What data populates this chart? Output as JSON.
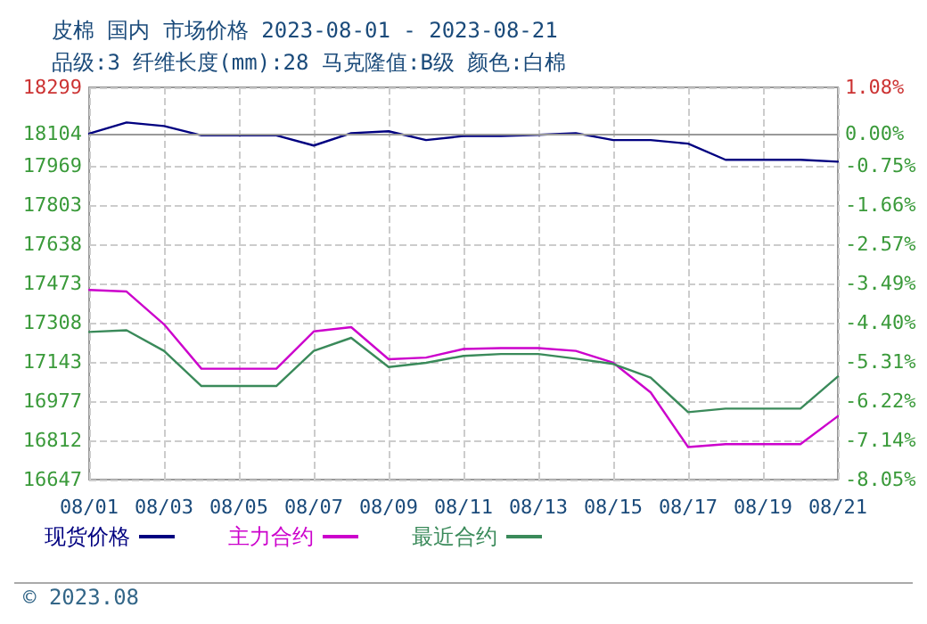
{
  "chart_data": {
    "type": "line",
    "title": "皮棉 国内 市场价格 2023-08-01 - 2023-08-21",
    "subtitle": "品级:3 纤维长度(mm):28 马克隆值:B级 颜色:白棉",
    "annotations": [
      "© 2023.08"
    ],
    "categories": [
      "08/01",
      null,
      "08/03",
      null,
      "08/05",
      null,
      "08/07",
      null,
      "08/09",
      null,
      "08/11",
      null,
      "08/13",
      null,
      "08/15",
      null,
      "08/17",
      null,
      "08/19",
      null,
      "08/21"
    ],
    "series": [
      {
        "name": "现货价格",
        "color": "#000080",
        "values": [
          18104,
          18151,
          18136,
          18097,
          18097,
          18097,
          18054,
          18106,
          18114,
          18077,
          18094,
          18094,
          18099,
          18106,
          18077,
          18077,
          18062,
          17994,
          17994,
          17994,
          17986
        ]
      },
      {
        "name": "主力合约",
        "color": "#cc00cc",
        "values": [
          17446,
          17439,
          17301,
          17114,
          17114,
          17114,
          17271,
          17289,
          17154,
          17161,
          17197,
          17201,
          17201,
          17189,
          17139,
          17014,
          16784,
          16796,
          16796,
          16796,
          16914
        ]
      },
      {
        "name": "最近合约",
        "color": "#3a8a5a",
        "values": [
          17269,
          17276,
          17189,
          17041,
          17041,
          17041,
          17189,
          17244,
          17121,
          17139,
          17168,
          17176,
          17176,
          17156,
          17134,
          17076,
          16931,
          16946,
          16946,
          16946,
          17081
        ]
      }
    ],
    "ylim": [
      16647,
      18299
    ],
    "yticks": [
      16647,
      16812,
      16977,
      17143,
      17308,
      17473,
      17638,
      17803,
      17969,
      18104,
      18299
    ],
    "y2lim": [
      -8.05,
      1.08
    ],
    "y2ticks": [
      {
        "value": -8.05,
        "label": "-8.05%"
      },
      {
        "value": -7.14,
        "label": "-7.14%"
      },
      {
        "value": -6.22,
        "label": "-6.22%"
      },
      {
        "value": -5.31,
        "label": "-5.31%"
      },
      {
        "value": -4.4,
        "label": "-4.40%"
      },
      {
        "value": -3.49,
        "label": "-3.49%"
      },
      {
        "value": -2.57,
        "label": "-2.57%"
      },
      {
        "value": -1.66,
        "label": "-1.66%"
      },
      {
        "value": -0.75,
        "label": "-0.75%"
      },
      {
        "value": 0,
        "label": "0.00%"
      },
      {
        "value": 1.08,
        "label": "1.08%"
      }
    ],
    "ref_lines": [
      {
        "axis": "y",
        "value": 18104,
        "color": "#999999"
      }
    ],
    "grid": true,
    "legend": "bottom",
    "marker": "none",
    "line_style": "solid"
  }
}
